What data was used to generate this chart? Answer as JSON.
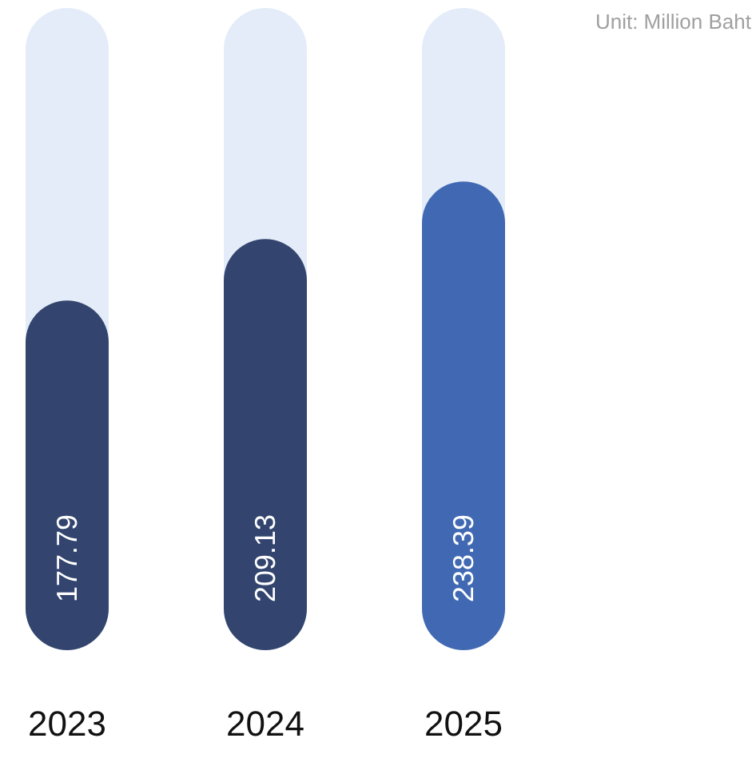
{
  "chart_data": {
    "type": "bar",
    "categories": [
      "2023",
      "2024",
      "2025"
    ],
    "values": [
      177.79,
      209.13,
      238.39
    ],
    "colors": [
      "#33456f",
      "#33456f",
      "#4169b3"
    ],
    "data_labels": true,
    "annotations": [
      "Unit: Million Baht"
    ]
  }
}
